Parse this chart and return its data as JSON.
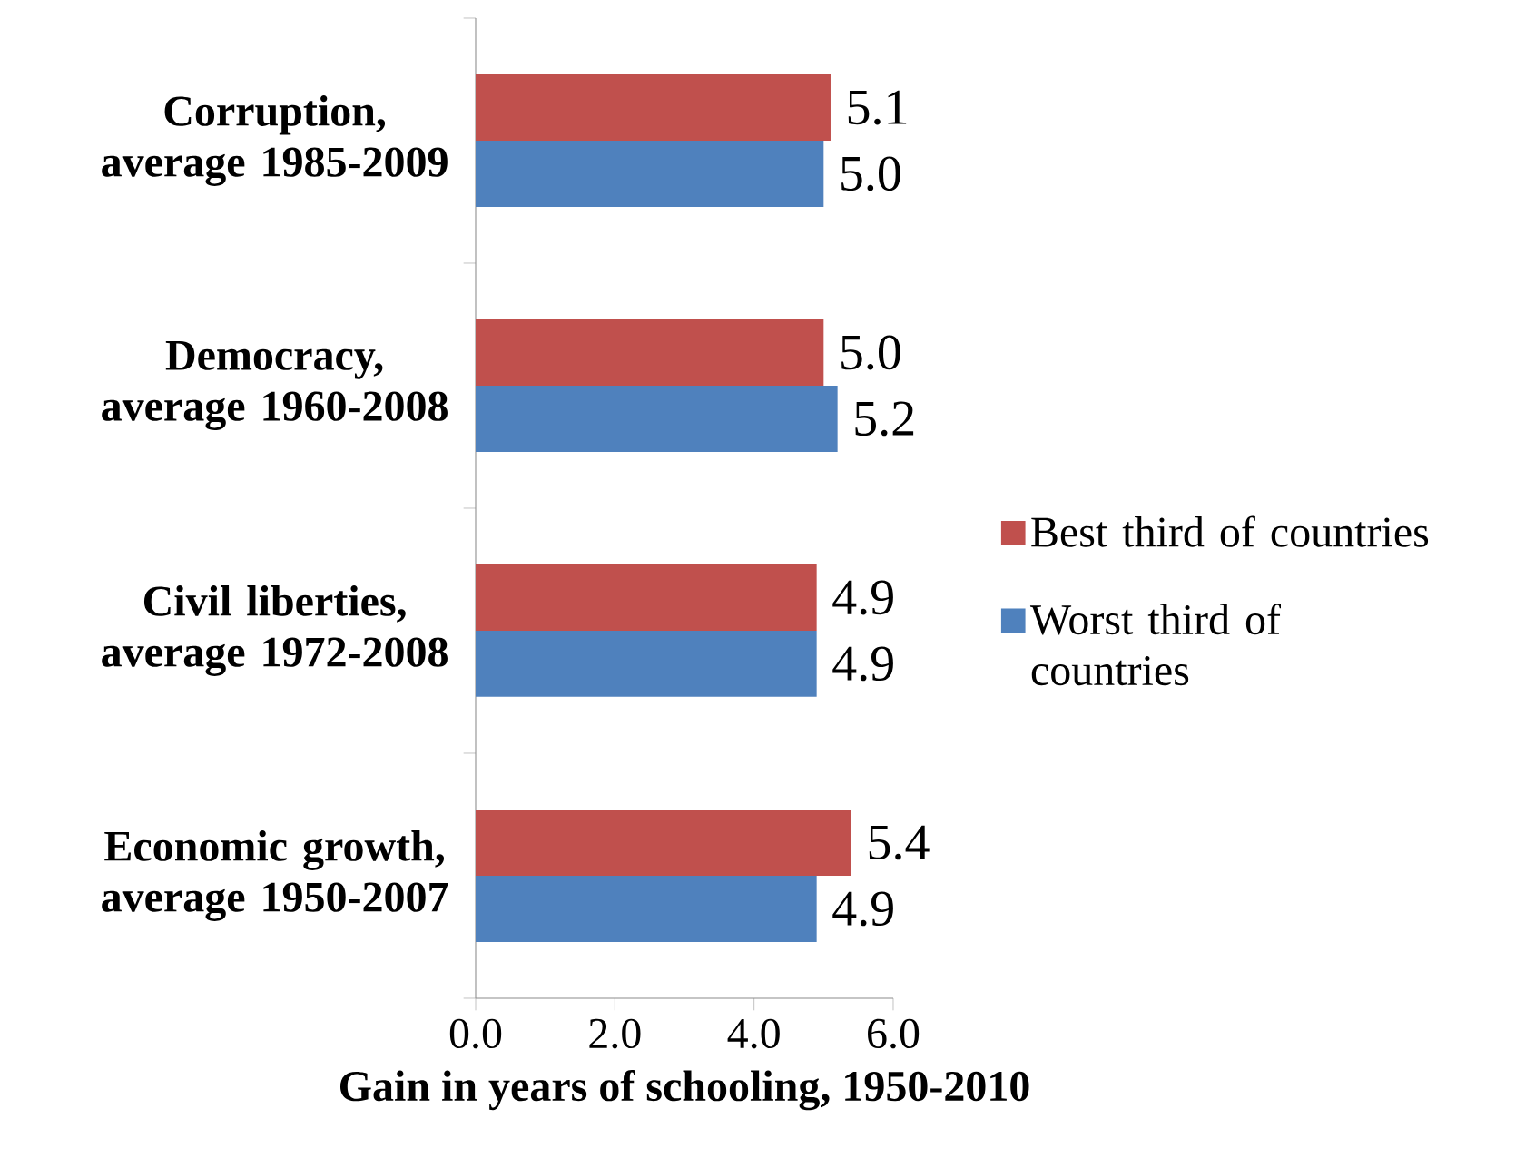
{
  "chart_data": {
    "type": "bar",
    "orientation": "horizontal",
    "categories": [
      "Corruption, average 1985-2009",
      "Democracy, average 1960-2008",
      "Civil liberties, average 1972-2008",
      "Economic growth, average 1950-2007"
    ],
    "series": [
      {
        "name": "Best third of countries",
        "color": "#c0504d",
        "values": [
          5.1,
          5.0,
          4.9,
          5.4
        ],
        "value_labels": [
          "5.1",
          "5.0",
          "4.9",
          "5.4"
        ]
      },
      {
        "name": "Worst third of countries",
        "color": "#4f81bd",
        "values": [
          5.0,
          5.2,
          4.9,
          4.9
        ],
        "value_labels": [
          "5.0",
          "5.2",
          "4.9",
          "4.9"
        ]
      }
    ],
    "xlabel": "Gain in years of schooling, 1950-2010",
    "xlim": [
      0,
      6
    ],
    "xticks": [
      {
        "value": 0,
        "label": "0.0"
      },
      {
        "value": 2,
        "label": "2.0"
      },
      {
        "value": 4,
        "label": "4.0"
      },
      {
        "value": 6,
        "label": "6.0"
      }
    ],
    "legend": "right"
  }
}
